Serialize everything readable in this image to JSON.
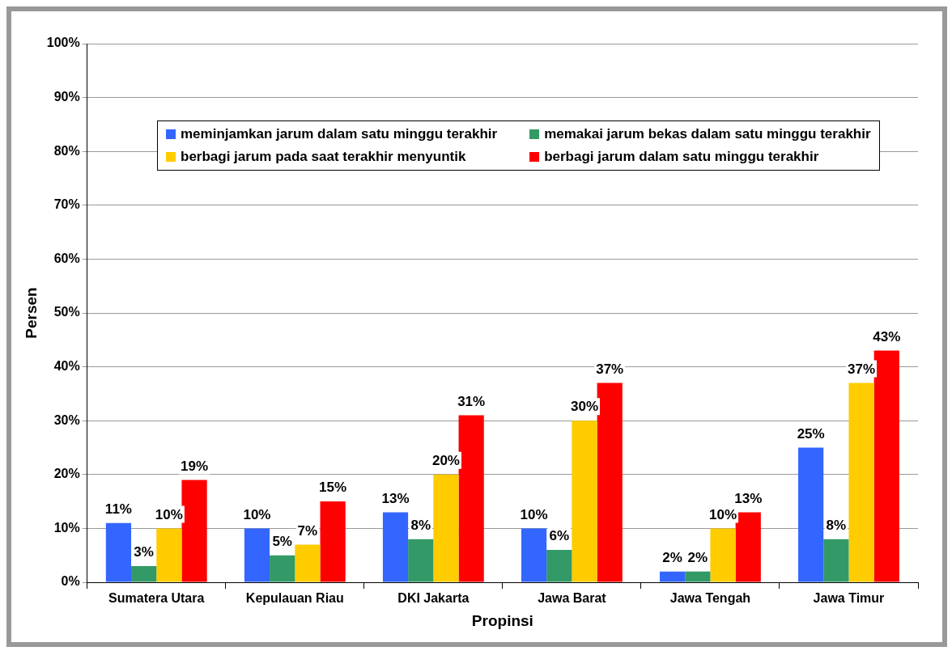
{
  "chart_data": {
    "type": "bar",
    "xlabel": "Propinsi",
    "ylabel": "Persen",
    "categories": [
      "Sumatera Utara",
      "Kepulauan Riau",
      "DKI Jakarta",
      "Jawa Barat",
      "Jawa Tengah",
      "Jawa Timur"
    ],
    "series": [
      {
        "name": "meminjamkan jarum dalam satu minggu terakhir",
        "color": "#3366ff",
        "values": [
          11,
          10,
          13,
          10,
          2,
          25
        ]
      },
      {
        "name": "memakai jarum bekas dalam satu minggu terakhir",
        "color": "#339966",
        "values": [
          3,
          5,
          8,
          6,
          2,
          8
        ]
      },
      {
        "name": "berbagi jarum pada saat terakhir menyuntik",
        "color": "#ffcc00",
        "values": [
          10,
          7,
          20,
          30,
          10,
          37
        ]
      },
      {
        "name": "berbagi jarum dalam satu minggu terakhir",
        "color": "#ff0000",
        "values": [
          19,
          15,
          31,
          37,
          13,
          43
        ]
      }
    ],
    "ylim": [
      0,
      100
    ],
    "yticks": [
      {
        "value": 0,
        "label": "0%"
      },
      {
        "value": 10,
        "label": "10%"
      },
      {
        "value": 20,
        "label": "20%"
      },
      {
        "value": 30,
        "label": "30%"
      },
      {
        "value": 40,
        "label": "40%"
      },
      {
        "value": 50,
        "label": "50%"
      },
      {
        "value": 60,
        "label": "60%"
      },
      {
        "value": 70,
        "label": "70%"
      },
      {
        "value": 80,
        "label": "80%"
      },
      {
        "value": 90,
        "label": "90%"
      },
      {
        "value": 100,
        "label": "100%"
      }
    ],
    "value_labels": [
      [
        "11%",
        "10%",
        "13%",
        "10%",
        "2%",
        "25%"
      ],
      [
        "3%",
        "5%",
        "8%",
        "6%",
        "2%",
        "8%"
      ],
      [
        "10%",
        "7%",
        "20%",
        "30%",
        "10%",
        "37%"
      ],
      [
        "19%",
        "15%",
        "31%",
        "37%",
        "13%",
        "43%"
      ]
    ],
    "grid": "y",
    "legend": "top"
  }
}
